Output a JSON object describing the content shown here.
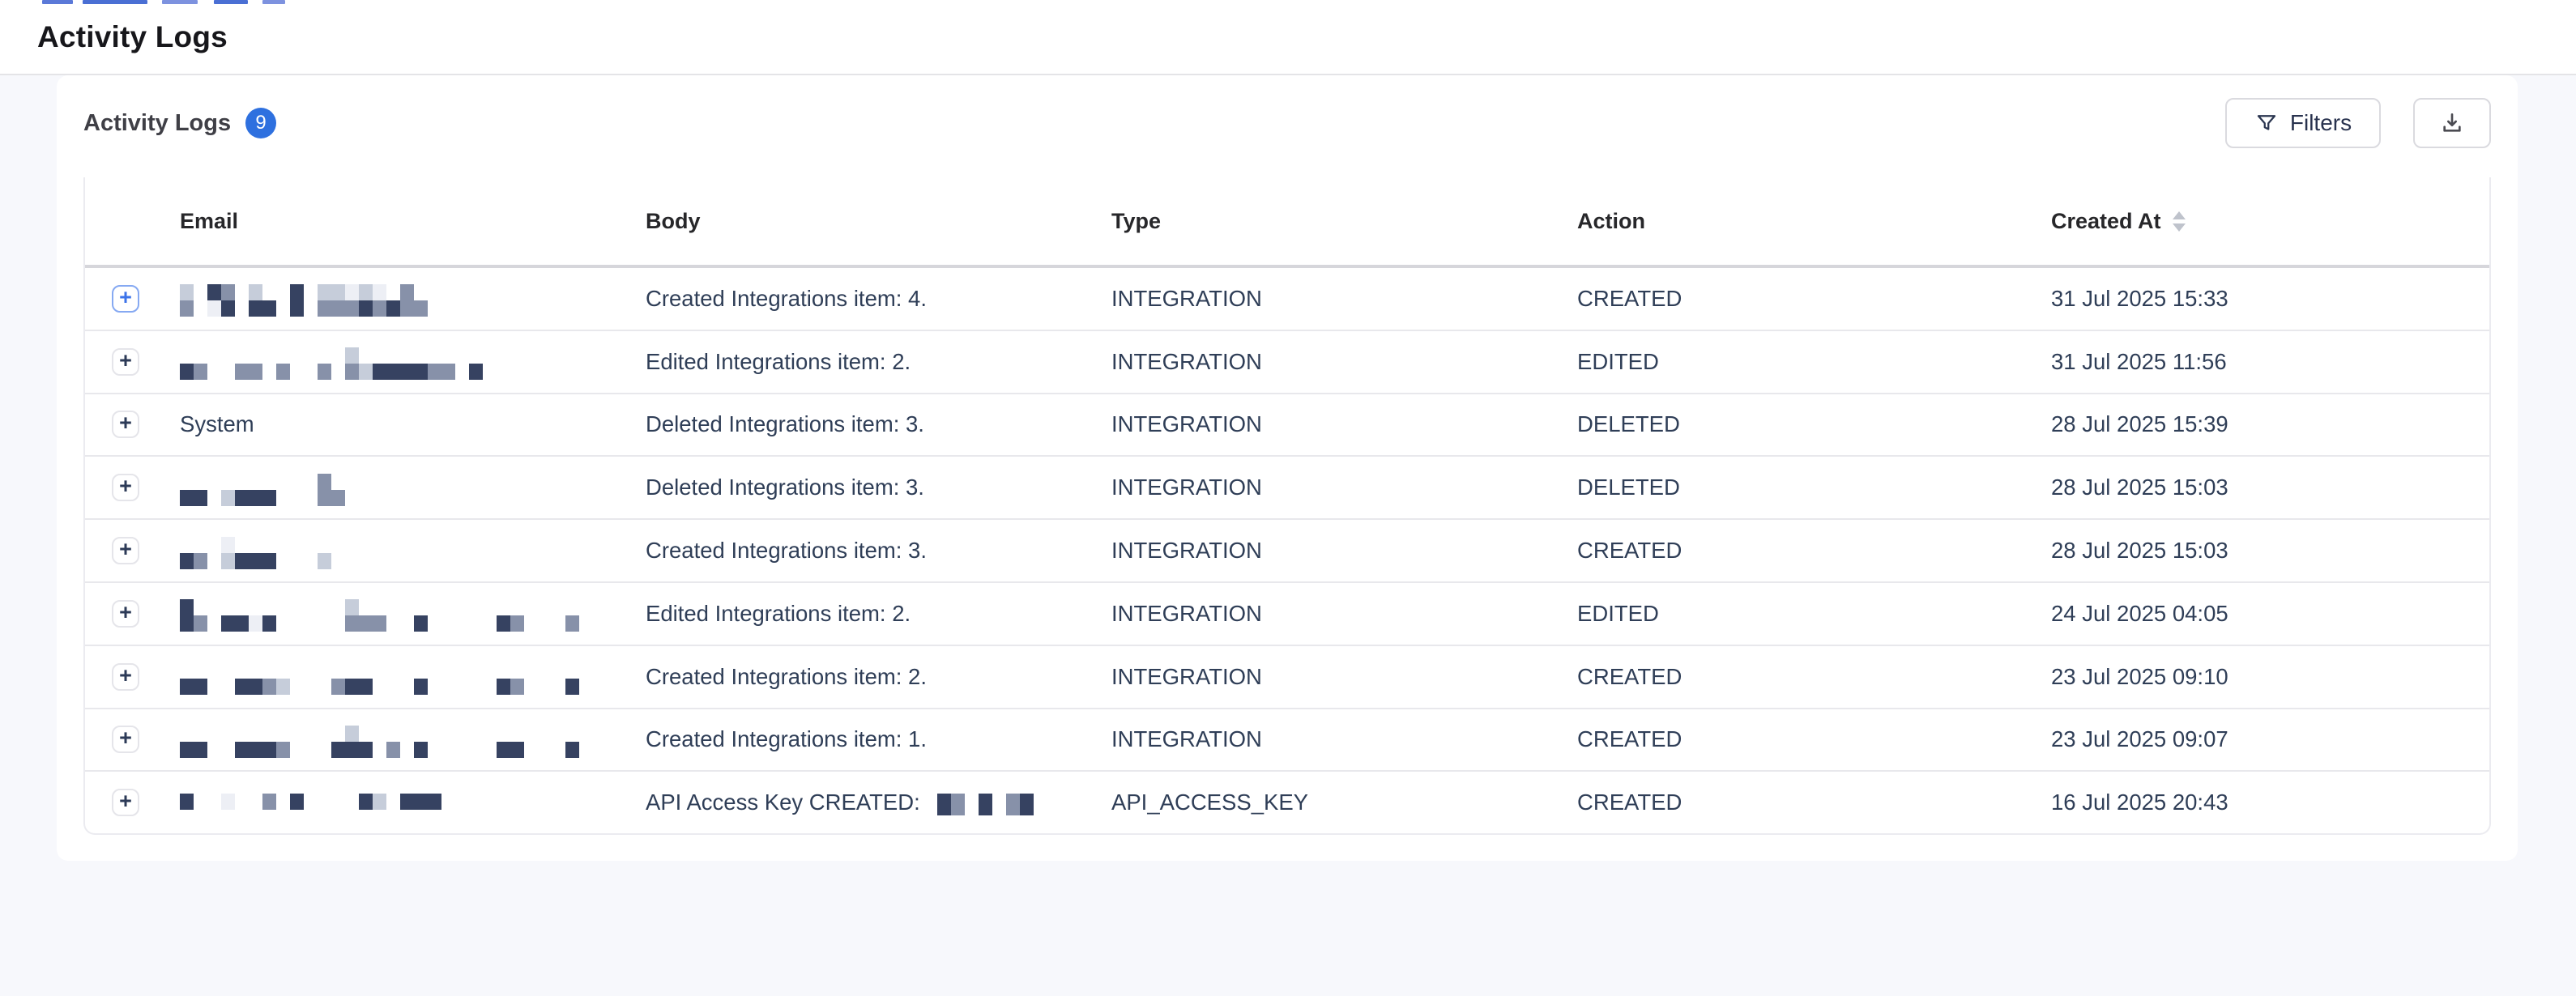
{
  "page": {
    "title": "Activity Logs"
  },
  "card": {
    "heading": "Activity Logs",
    "count_badge": "9",
    "toolbar": {
      "filters_label": "Filters",
      "filter_icon": "funnel",
      "download_icon": "download-tray"
    }
  },
  "table": {
    "columns": [
      "Email",
      "Body",
      "Type",
      "Action",
      "Created At"
    ],
    "sorted_column": "Created At",
    "expand_glyph": "+",
    "rows": [
      {
        "email": "",
        "redacted": true,
        "mosaic_top": "l.dm.l..d.llwlw.m.",
        "mosaic_bot": "m.wd.dd.d.mmmdmdmm",
        "body": "Created Integrations item: 4.",
        "type": "INTEGRATION",
        "action": "CREATED",
        "created_at": "31 Jul 2025 15:33",
        "expand_focused": true
      },
      {
        "email": "",
        "redacted": true,
        "mosaic_top": "............l..........",
        "mosaic_bot": "dm..mm.m..m.mlddddmm.d.",
        "body": "Edited Integrations item: 2.",
        "type": "INTEGRATION",
        "action": "EDITED",
        "created_at": "31 Jul 2025 11:56",
        "expand_focused": false
      },
      {
        "email": "System",
        "redacted": false,
        "mosaic_top": "",
        "mosaic_bot": "",
        "body": "Deleted Integrations item: 3.",
        "type": "INTEGRATION",
        "action": "DELETED",
        "created_at": "28 Jul 2025 15:39",
        "expand_focused": false
      },
      {
        "email": "",
        "redacted": true,
        "mosaic_top": "..........m..",
        "mosaic_bot": "dd.lddd...mm.",
        "body": "Deleted Integrations item: 3.",
        "type": "INTEGRATION",
        "action": "DELETED",
        "created_at": "28 Jul 2025 15:03",
        "expand_focused": false
      },
      {
        "email": "",
        "redacted": true,
        "mosaic_top": "...w.........",
        "mosaic_bot": "dm.lddd...l..",
        "body": "Created Integrations item: 3.",
        "type": "INTEGRATION",
        "action": "CREATED",
        "created_at": "28 Jul 2025 15:03",
        "expand_focused": false
      },
      {
        "email": "",
        "redacted": true,
        "mosaic_top": "d...........l................",
        "mosaic_bot": "dm.ddwd.....mmm..d.....dm...m",
        "body": "Edited Integrations item: 2.",
        "type": "INTEGRATION",
        "action": "EDITED",
        "created_at": "24 Jul 2025 04:05",
        "expand_focused": false
      },
      {
        "email": "",
        "redacted": true,
        "mosaic_top": ".............................",
        "mosaic_bot": "dd..ddml...mdd...d.....dm...d",
        "body": "Created Integrations item: 2.",
        "type": "INTEGRATION",
        "action": "CREATED",
        "created_at": "23 Jul 2025 09:10",
        "expand_focused": false
      },
      {
        "email": "",
        "redacted": true,
        "mosaic_top": "............l................",
        "mosaic_bot": "dd..dddm...ddd.m.d.....dd...d",
        "body": "Created Integrations item: 1.",
        "type": "INTEGRATION",
        "action": "CREATED",
        "created_at": "23 Jul 2025 09:07",
        "expand_focused": false
      },
      {
        "email": "",
        "redacted": true,
        "mosaic_top": "",
        "mosaic_bot": "d..w..m.d....dl.ddd",
        "body": "API Access Key CREATED: ",
        "body_mosaic": "dm.d.md",
        "type": "API_ACCESS_KEY",
        "action": "CREATED",
        "created_at": "16 Jul 2025 20:43",
        "expand_focused": false
      }
    ]
  },
  "colors": {
    "accent_blue": "#2e70df",
    "page_background": "#f7f8fc",
    "table_text": "#2f3e57",
    "header_text": "#27272a"
  }
}
